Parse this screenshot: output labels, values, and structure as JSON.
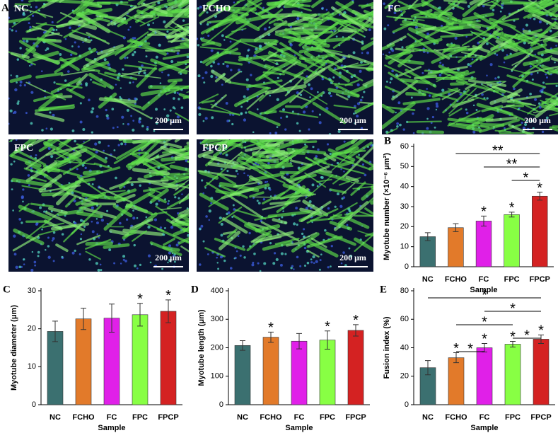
{
  "panels": [
    "A",
    "B",
    "C",
    "D",
    "E"
  ],
  "images": [
    {
      "label": "NC",
      "scale": "200 μm"
    },
    {
      "label": "FCHO",
      "scale": "200 μm"
    },
    {
      "label": "FC",
      "scale": "200 μm"
    },
    {
      "label": "FPC",
      "scale": "200 μm"
    },
    {
      "label": "FPCP",
      "scale": "200 μm"
    }
  ],
  "chart_data": [
    {
      "type": "bar",
      "y_label": "Myotube number (×10⁻⁶ μm²)",
      "x_label": "Sample",
      "categories": [
        "NC",
        "FCHO",
        "FC",
        "FPC",
        "FPCP"
      ],
      "values": [
        15,
        19.5,
        22.8,
        26,
        35.2
      ],
      "errors": [
        2,
        2,
        2.5,
        1.2,
        2
      ],
      "colors": [
        "#3b7070",
        "#e27a2a",
        "#e020e8",
        "#88ff44",
        "#d42222"
      ],
      "bar_labels": [
        null,
        null,
        "*",
        "*",
        "*"
      ],
      "significance": [
        {
          "between": [
            1,
            4
          ],
          "label": "**"
        },
        {
          "between": [
            2,
            4
          ],
          "label": "**"
        },
        {
          "between": [
            3,
            4
          ],
          "label": "*"
        }
      ],
      "ylim": [
        0,
        60
      ],
      "yticks": [
        0,
        10,
        20,
        30,
        40,
        50,
        60
      ]
    },
    {
      "type": "bar",
      "y_label": "Myotube diameter (μm)",
      "x_label": "Sample",
      "categories": [
        "NC",
        "FCHO",
        "FC",
        "FPC",
        "FPCP"
      ],
      "values": [
        19.3,
        22.6,
        22.8,
        23.7,
        24.6
      ],
      "errors": [
        2.7,
        2.8,
        3.7,
        3,
        3
      ],
      "colors": [
        "#3b7070",
        "#e27a2a",
        "#e020e8",
        "#88ff44",
        "#d42222"
      ],
      "bar_labels": [
        null,
        null,
        null,
        "*",
        "*"
      ],
      "ylim": [
        0,
        30
      ],
      "yticks": [
        0,
        10,
        20,
        30
      ]
    },
    {
      "type": "bar",
      "y_label": "Myotube length (μm)",
      "x_label": "Sample",
      "categories": [
        "NC",
        "FCHO",
        "FC",
        "FPC",
        "FPCP"
      ],
      "values": [
        208,
        237,
        223,
        227,
        261
      ],
      "errors": [
        17,
        18,
        27,
        32,
        20
      ],
      "colors": [
        "#3b7070",
        "#e27a2a",
        "#e020e8",
        "#88ff44",
        "#d42222"
      ],
      "bar_labels": [
        null,
        "*",
        null,
        "*",
        "*"
      ],
      "ylim": [
        0,
        400
      ],
      "yticks": [
        0,
        100,
        200,
        300,
        400
      ]
    },
    {
      "type": "bar",
      "y_label": "Fusion index (%)",
      "x_label": "Sample",
      "categories": [
        "NC",
        "FCHO",
        "FC",
        "FPC",
        "FPCP"
      ],
      "values": [
        26,
        33,
        40,
        42.5,
        46
      ],
      "errors": [
        5,
        3.5,
        3,
        2,
        3
      ],
      "colors": [
        "#3b7070",
        "#e27a2a",
        "#e020e8",
        "#88ff44",
        "#d42222"
      ],
      "bar_labels": [
        null,
        "*",
        "*",
        "*",
        "*"
      ],
      "significance": [
        {
          "between": [
            0,
            4
          ],
          "label": "*"
        },
        {
          "between": [
            2,
            4
          ],
          "label": "*"
        },
        {
          "between": [
            1,
            3
          ],
          "label": "*"
        },
        {
          "between": [
            3,
            4
          ],
          "label": "*"
        },
        {
          "between": [
            1,
            2
          ],
          "label": "*"
        }
      ],
      "ylim": [
        0,
        80
      ],
      "yticks": [
        0,
        20,
        40,
        60,
        80
      ]
    }
  ]
}
